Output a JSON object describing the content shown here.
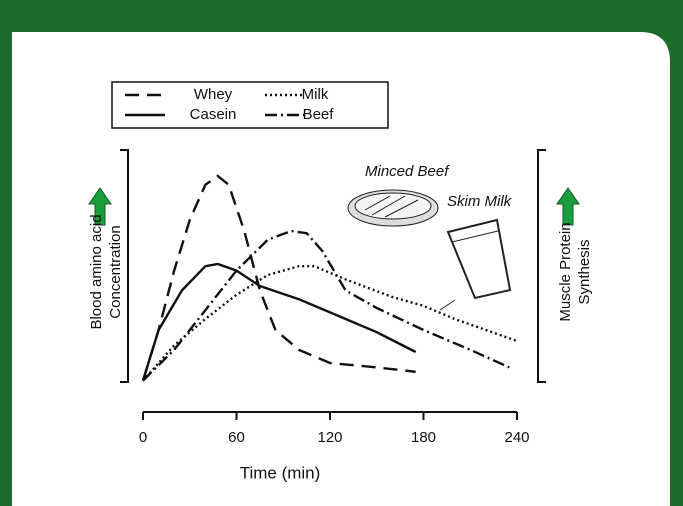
{
  "chart_data": {
    "type": "line",
    "legend": "top-left",
    "y_label": [
      "Blood amino acid",
      "Concentration"
    ],
    "y2_label": [
      "Muscle Protein",
      "Synthesis"
    ],
    "x_label": "Time (min)",
    "annotations": [
      "Minced Beef",
      "Skim Milk"
    ],
    "xlim": [
      0,
      240
    ],
    "xticks": [
      0,
      60,
      120,
      180,
      240
    ],
    "ylim": [
      0,
      100
    ],
    "series": [
      {
        "name": "Whey",
        "color": "#111111",
        "dash": "14,8",
        "x": [
          0,
          10,
          20,
          30,
          40,
          48,
          55,
          65,
          75,
          85,
          100,
          120,
          150,
          175
        ],
        "values": [
          2,
          25,
          52,
          75,
          91,
          95,
          91,
          70,
          43,
          25,
          16,
          10,
          8,
          6
        ]
      },
      {
        "name": "Casein",
        "color": "#111111",
        "dash": "none",
        "x": [
          0,
          10,
          25,
          40,
          48,
          60,
          75,
          100,
          120,
          150,
          175
        ],
        "values": [
          2,
          25,
          43,
          54,
          55,
          52,
          45,
          39,
          33,
          24,
          15
        ]
      },
      {
        "name": "Milk",
        "color": "#111111",
        "dash": "2,3",
        "x": [
          0,
          20,
          40,
          60,
          80,
          100,
          110,
          130,
          160,
          180,
          200,
          240
        ],
        "values": [
          2,
          18,
          30,
          41,
          50,
          54,
          54,
          48,
          40,
          36,
          30,
          20
        ]
      },
      {
        "name": "Beef",
        "color": "#111111",
        "dash": "12,4,2,4",
        "x": [
          0,
          20,
          40,
          60,
          80,
          95,
          105,
          115,
          130,
          150,
          180,
          210,
          235
        ],
        "values": [
          2,
          16,
          34,
          52,
          66,
          70,
          69,
          61,
          43,
          35,
          25,
          16,
          8
        ]
      }
    ]
  }
}
